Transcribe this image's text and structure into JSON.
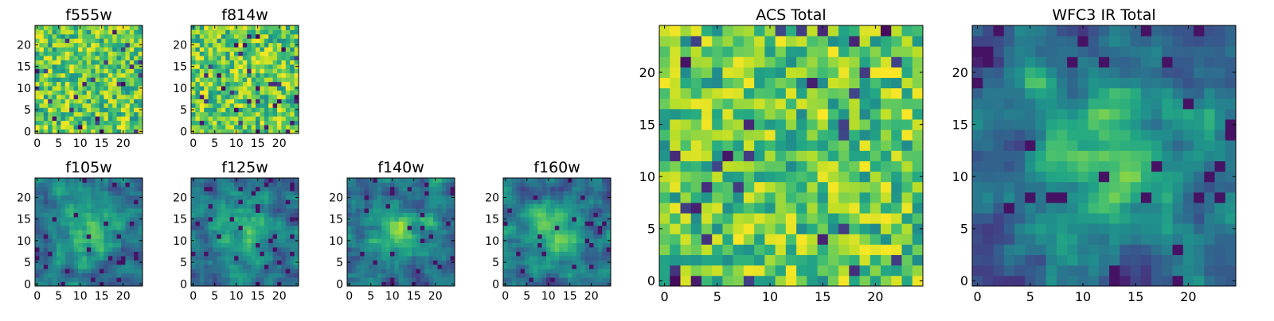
{
  "chart_data": [
    {
      "type": "heatmap",
      "title": "f555w",
      "pattern": "noise",
      "grid_size": 25,
      "xlim": [
        0,
        24
      ],
      "ylim": [
        0,
        24
      ],
      "xticks": [
        0,
        5,
        10,
        15,
        20
      ],
      "yticks": [
        0,
        5,
        10,
        15,
        20
      ],
      "colormap": "viridis",
      "grid": false
    },
    {
      "type": "heatmap",
      "title": "f814w",
      "pattern": "noise",
      "grid_size": 25,
      "xlim": [
        0,
        24
      ],
      "ylim": [
        0,
        24
      ],
      "xticks": [
        0,
        5,
        10,
        15,
        20
      ],
      "yticks": [
        0,
        5,
        10,
        15,
        20
      ],
      "colormap": "viridis",
      "grid": false
    },
    {
      "type": "heatmap",
      "title": "f105w",
      "pattern": "blob",
      "grid_size": 25,
      "xlim": [
        0,
        24
      ],
      "ylim": [
        0,
        24
      ],
      "xticks": [
        0,
        5,
        10,
        15,
        20
      ],
      "yticks": [
        0,
        5,
        10,
        15,
        20
      ],
      "colormap": "viridis",
      "grid": false
    },
    {
      "type": "heatmap",
      "title": "f125w",
      "pattern": "blob",
      "grid_size": 25,
      "xlim": [
        0,
        24
      ],
      "ylim": [
        0,
        24
      ],
      "xticks": [
        0,
        5,
        10,
        15,
        20
      ],
      "yticks": [
        0,
        5,
        10,
        15,
        20
      ],
      "colormap": "viridis",
      "grid": false
    },
    {
      "type": "heatmap",
      "title": "f140w",
      "pattern": "blob",
      "grid_size": 25,
      "xlim": [
        0,
        24
      ],
      "ylim": [
        0,
        24
      ],
      "xticks": [
        0,
        5,
        10,
        15,
        20
      ],
      "yticks": [
        0,
        5,
        10,
        15,
        20
      ],
      "colormap": "viridis",
      "grid": false
    },
    {
      "type": "heatmap",
      "title": "f160w",
      "pattern": "blob",
      "grid_size": 25,
      "xlim": [
        0,
        24
      ],
      "ylim": [
        0,
        24
      ],
      "xticks": [
        0,
        5,
        10,
        15,
        20
      ],
      "yticks": [
        0,
        5,
        10,
        15,
        20
      ],
      "colormap": "viridis",
      "grid": false
    },
    {
      "type": "heatmap",
      "title": "ACS Total",
      "pattern": "noise",
      "grid_size": 25,
      "xlim": [
        0,
        24
      ],
      "ylim": [
        0,
        24
      ],
      "xticks": [
        0,
        5,
        10,
        15,
        20
      ],
      "yticks": [
        0,
        5,
        10,
        15,
        20
      ],
      "colormap": "viridis",
      "grid": false
    },
    {
      "type": "heatmap",
      "title": "WFC3 IR Total",
      "pattern": "blob",
      "grid_size": 25,
      "xlim": [
        0,
        24
      ],
      "ylim": [
        0,
        24
      ],
      "xticks": [
        0,
        5,
        10,
        15,
        20
      ],
      "yticks": [
        0,
        5,
        10,
        15,
        20
      ],
      "colormap": "viridis",
      "grid": false
    }
  ]
}
